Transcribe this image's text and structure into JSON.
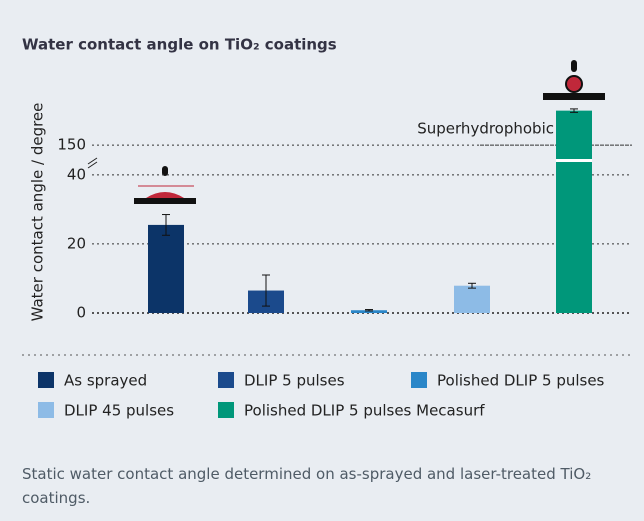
{
  "chart_data": {
    "type": "bar",
    "title": "Water contact angle on TiO₂ coatings",
    "y_label": "Water contact angle / degree",
    "categories": [
      "As sprayed",
      "DLIP 5 pulses",
      "Polished DLIP 5 pulses",
      "DLIP 45 pulses",
      "Polished DLIP 5 pulses Mecasurf"
    ],
    "values": [
      25.5,
      6.5,
      0.8,
      7.9,
      160
    ],
    "errors": [
      3,
      4.5,
      0.2,
      0.7,
      0.5
    ],
    "colors": [
      "#0c3468",
      "#1b4a8c",
      "#2a86c8",
      "#8dbbe6",
      "#00977a"
    ],
    "ylim": [
      0,
      162
    ],
    "axis_break": [
      44,
      146
    ],
    "yticks": [
      0,
      20,
      40,
      150
    ],
    "annotation": "Superhydrophobic",
    "annotation_value": 150,
    "grid": true
  },
  "caption": "Static water contact angle determined on as-sprayed and laser-treated TiO₂ coatings."
}
